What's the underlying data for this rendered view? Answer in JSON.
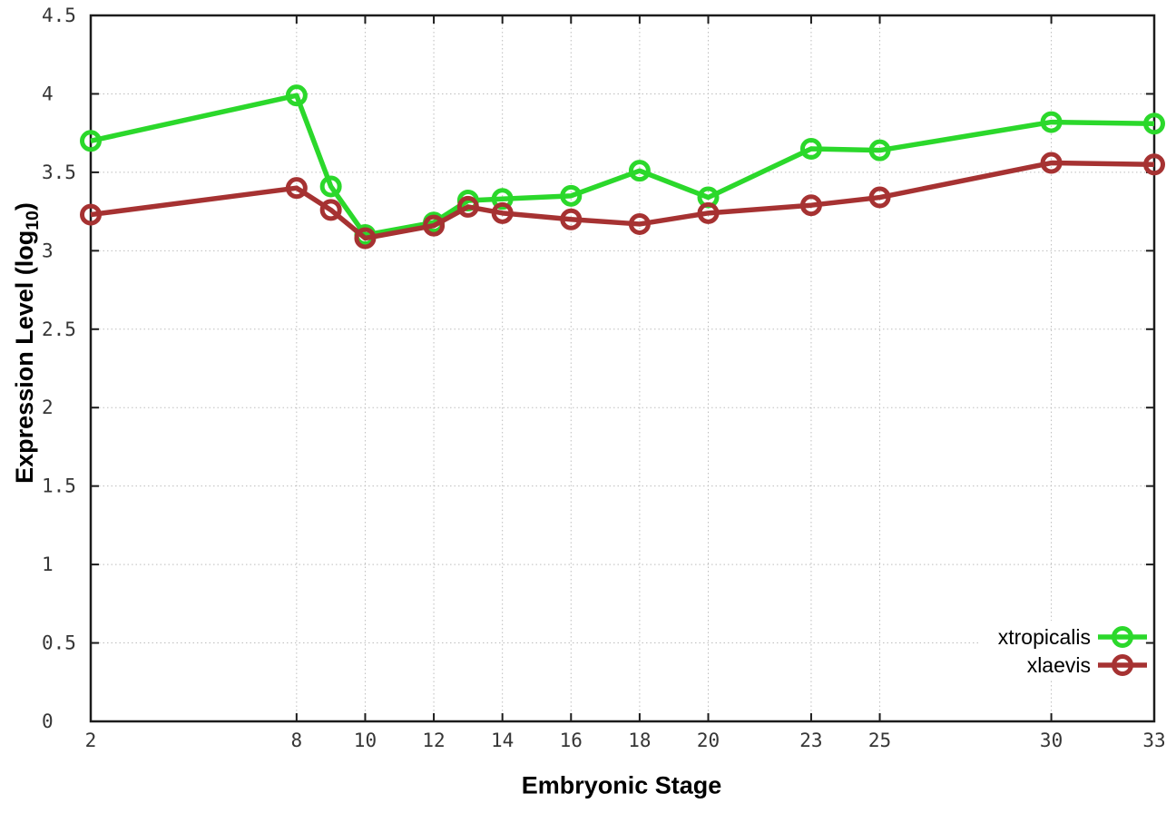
{
  "figure": {
    "background_color": "#ffffff",
    "axis_color": "#1c1c1c",
    "grid_color": "#bdbdbd",
    "tick_label_color": "#363636"
  },
  "chart_data": {
    "type": "line",
    "title": "",
    "xlabel": "Embryonic Stage",
    "ylabel": "Expression Level (log10)",
    "ylabel_parts": {
      "prefix": "Expression Level (log",
      "sub": "10",
      "suffix": ")"
    },
    "xlim": [
      2,
      33
    ],
    "ylim": [
      0,
      4.5
    ],
    "grid": true,
    "legend_position": "bottom-right",
    "x": [
      2,
      8,
      9,
      10,
      12,
      13,
      14,
      16,
      18,
      20,
      23,
      25,
      30,
      33
    ],
    "x_ticks": [
      2,
      8,
      10,
      12,
      14,
      16,
      18,
      20,
      23,
      25,
      30,
      33
    ],
    "x_tick_labels": [
      "2",
      "8",
      "10",
      "12",
      "14",
      "16",
      "18",
      "20",
      "23",
      "25",
      "30",
      "33"
    ],
    "y_ticks": [
      0,
      0.5,
      1,
      1.5,
      2,
      2.5,
      3,
      3.5,
      4,
      4.5
    ],
    "y_tick_labels": [
      "0",
      "0.5",
      "1",
      "1.5",
      "2",
      "2.5",
      "3",
      "3.5",
      "4",
      "4.5"
    ],
    "series": [
      {
        "name": "xtropicalis",
        "color": "#2bd82b",
        "marker": "open-circle",
        "values": [
          3.7,
          3.99,
          3.41,
          3.1,
          3.18,
          3.32,
          3.33,
          3.35,
          3.51,
          3.34,
          3.65,
          3.64,
          3.82,
          3.81
        ]
      },
      {
        "name": "xlaevis",
        "color": "#a63232",
        "marker": "open-circle",
        "values": [
          3.23,
          3.4,
          3.26,
          3.08,
          3.16,
          3.28,
          3.24,
          3.2,
          3.17,
          3.24,
          3.29,
          3.34,
          3.56,
          3.55
        ]
      }
    ]
  }
}
